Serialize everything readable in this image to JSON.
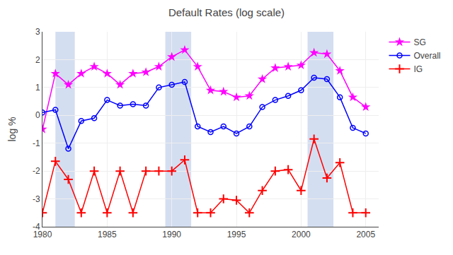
{
  "chart_data": {
    "type": "line",
    "title": "Default Rates (log scale)",
    "ylabel": "log %",
    "x": [
      1980,
      1981,
      1982,
      1983,
      1984,
      1985,
      1986,
      1987,
      1988,
      1989,
      1990,
      1991,
      1992,
      1993,
      1994,
      1995,
      1996,
      1997,
      1998,
      1999,
      2000,
      2001,
      2002,
      2003,
      2004,
      2005
    ],
    "series": [
      {
        "name": "SG",
        "color": "#ff00ff",
        "marker": "star",
        "values": [
          -0.5,
          1.5,
          1.1,
          1.5,
          1.75,
          1.5,
          1.1,
          1.5,
          1.55,
          1.75,
          2.1,
          2.35,
          1.75,
          0.9,
          0.85,
          0.65,
          0.7,
          1.3,
          1.7,
          1.75,
          1.8,
          2.25,
          2.2,
          1.6,
          0.65,
          0.3
        ]
      },
      {
        "name": "Overall",
        "color": "#0000ff",
        "marker": "circle-open",
        "values": [
          0.1,
          0.2,
          -1.2,
          -0.2,
          -0.1,
          0.55,
          0.35,
          0.4,
          0.35,
          1.0,
          1.1,
          1.2,
          -0.4,
          -0.6,
          -0.4,
          -0.65,
          -0.4,
          0.3,
          0.55,
          0.7,
          0.9,
          1.35,
          1.3,
          0.65,
          -0.45,
          -0.65
        ]
      },
      {
        "name": "IG",
        "color": "#ff0000",
        "marker": "plus",
        "values": [
          -3.5,
          -1.65,
          -2.3,
          -3.5,
          -2.0,
          -3.5,
          -2.0,
          -3.5,
          -2.0,
          -2.0,
          -2.0,
          -1.6,
          -3.5,
          -3.5,
          -3.0,
          -3.05,
          -3.5,
          -2.7,
          -2.0,
          -1.95,
          -2.7,
          -0.85,
          -2.25,
          -1.7,
          -3.5,
          -3.5
        ]
      }
    ],
    "shaded_regions": [
      [
        1981,
        1982.5
      ],
      [
        1989.5,
        1991.5
      ],
      [
        2000.5,
        2002.5
      ]
    ],
    "xlim": [
      1980,
      2006
    ],
    "xticks": [
      1980,
      1985,
      1990,
      1995,
      2000,
      2005
    ],
    "ylim": [
      -4,
      3
    ],
    "yticks": [
      -4,
      -3,
      -2,
      -1,
      0,
      1,
      2,
      3
    ],
    "grid": true,
    "legend": "upper right"
  }
}
